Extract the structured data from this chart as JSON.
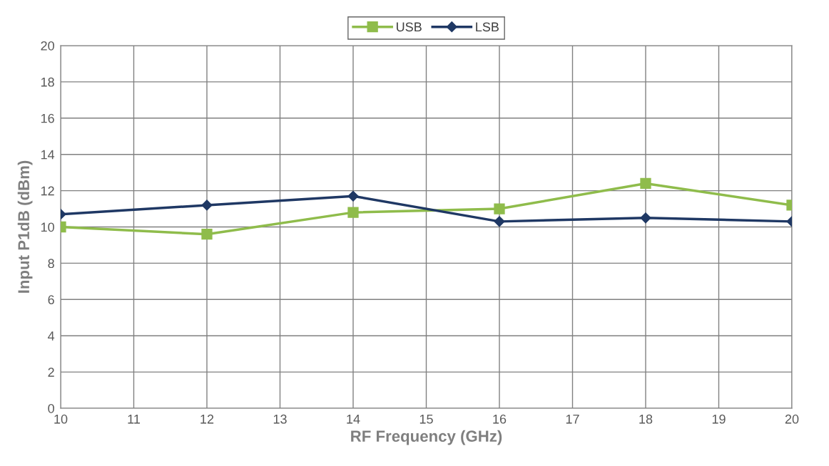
{
  "chart_data": {
    "type": "line",
    "xlabel": "RF Frequency (GHz)",
    "ylabel": "Input P1dB (dBm)",
    "x": [
      10,
      12,
      14,
      16,
      18,
      20
    ],
    "series": [
      {
        "name": "USB",
        "color": "#8fbc4b",
        "marker": "square",
        "values": [
          10.0,
          9.6,
          10.8,
          11.0,
          12.4,
          11.2
        ]
      },
      {
        "name": "LSB",
        "color": "#1f3864",
        "marker": "diamond",
        "values": [
          10.7,
          11.2,
          11.7,
          10.3,
          10.5,
          10.3
        ]
      }
    ],
    "xlim": [
      10,
      20
    ],
    "xticks": [
      10,
      11,
      12,
      13,
      14,
      15,
      16,
      17,
      18,
      19,
      20
    ],
    "ylim": [
      0,
      20
    ],
    "yticks": [
      0,
      2,
      4,
      6,
      8,
      10,
      12,
      14,
      16,
      18,
      20
    ],
    "grid": true,
    "legend": "top",
    "line_style": "solid"
  }
}
